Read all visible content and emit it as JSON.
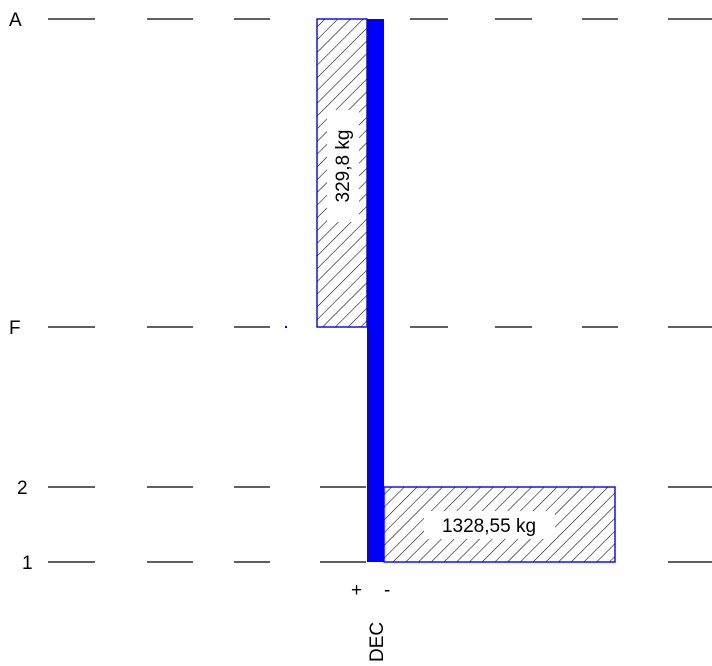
{
  "levels": [
    {
      "label": "A"
    },
    {
      "label": "F"
    },
    {
      "label": "2"
    },
    {
      "label": "1"
    }
  ],
  "loads": [
    {
      "label": "329,8 kg",
      "value_kg": 329.8,
      "side": "positive",
      "from_level": "F",
      "to_level": "A"
    },
    {
      "label": "1328,55 kg",
      "value_kg": 1328.55,
      "side": "negative",
      "from_level": "1",
      "to_level": "2"
    }
  ],
  "axis": {
    "plus_sign": "+",
    "minus_sign": "-",
    "caption": "DEC"
  },
  "colors": {
    "member": "#0000ff",
    "load_outline": "#0000ff",
    "hatch": "#000000",
    "level_line": "#000000"
  }
}
